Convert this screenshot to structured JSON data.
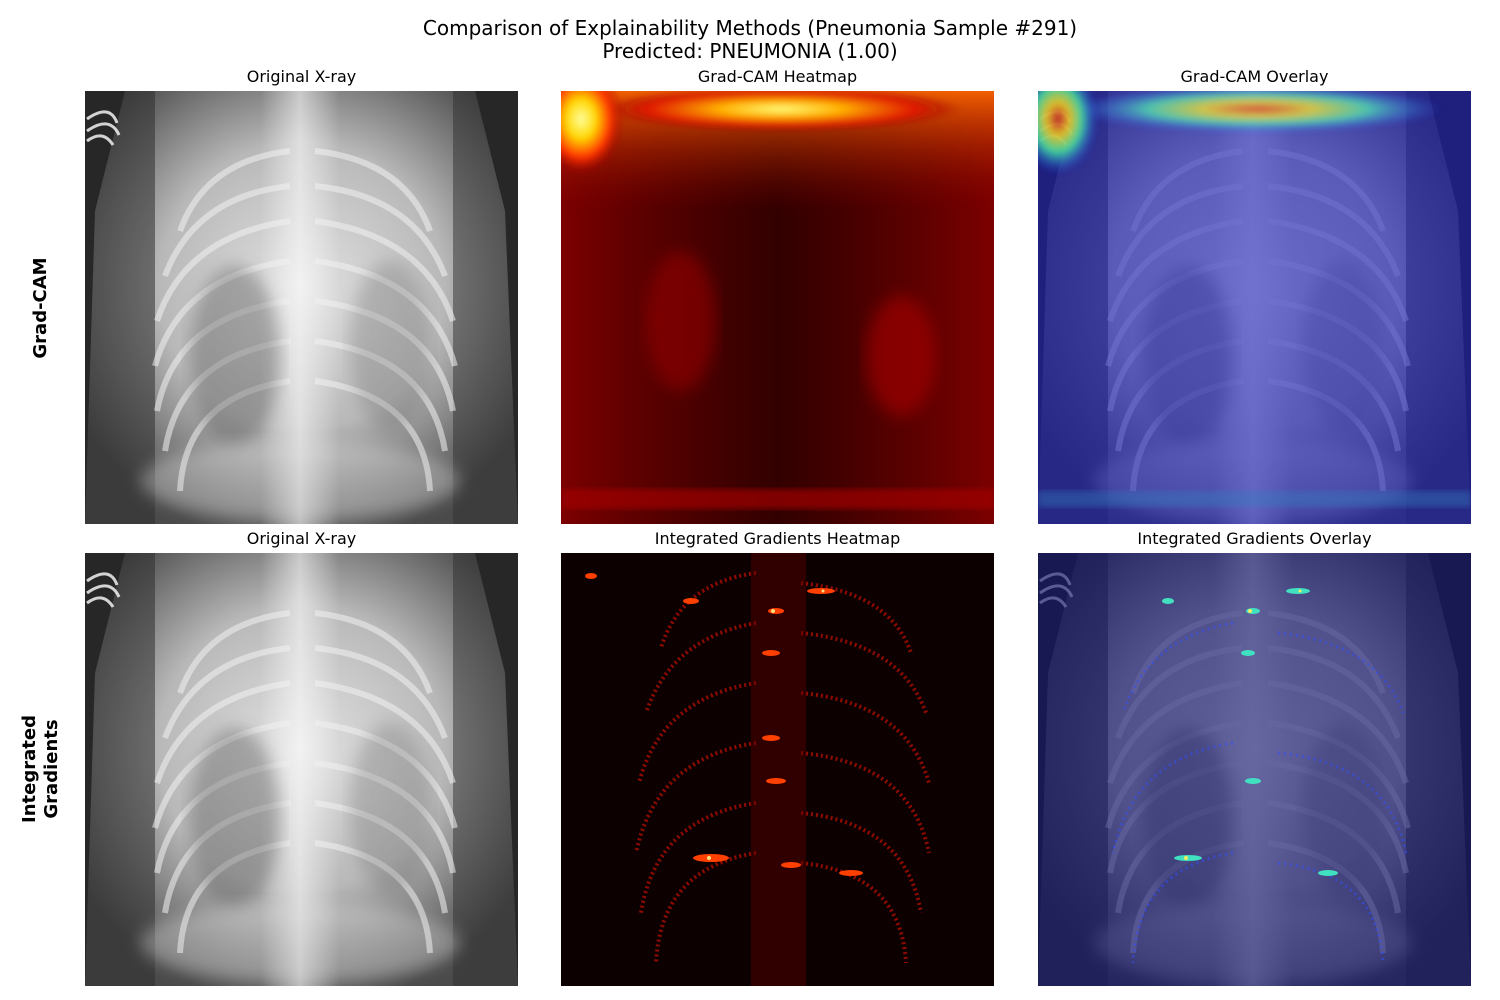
{
  "figure": {
    "title_line1": "Comparison of Explainability Methods (Pneumonia Sample #291)",
    "title_line2": "Predicted: PNEUMONIA (1.00)"
  },
  "rows": [
    {
      "label_lines": [
        "Grad-CAM"
      ],
      "panels": [
        {
          "title": "Original X-ray",
          "kind": "xray"
        },
        {
          "title": "Grad-CAM Heatmap",
          "kind": "gradcam-heatmap",
          "colormap": "hot"
        },
        {
          "title": "Grad-CAM Overlay",
          "kind": "gradcam-overlay",
          "colormap": "jet"
        }
      ]
    },
    {
      "label_lines": [
        "Integrated",
        "Gradients"
      ],
      "panels": [
        {
          "title": "Original X-ray",
          "kind": "xray"
        },
        {
          "title": "Integrated Gradients Heatmap",
          "kind": "ig-heatmap",
          "colormap": "hot"
        },
        {
          "title": "Integrated Gradients Overlay",
          "kind": "ig-overlay",
          "colormap": "jet"
        }
      ]
    }
  ]
}
